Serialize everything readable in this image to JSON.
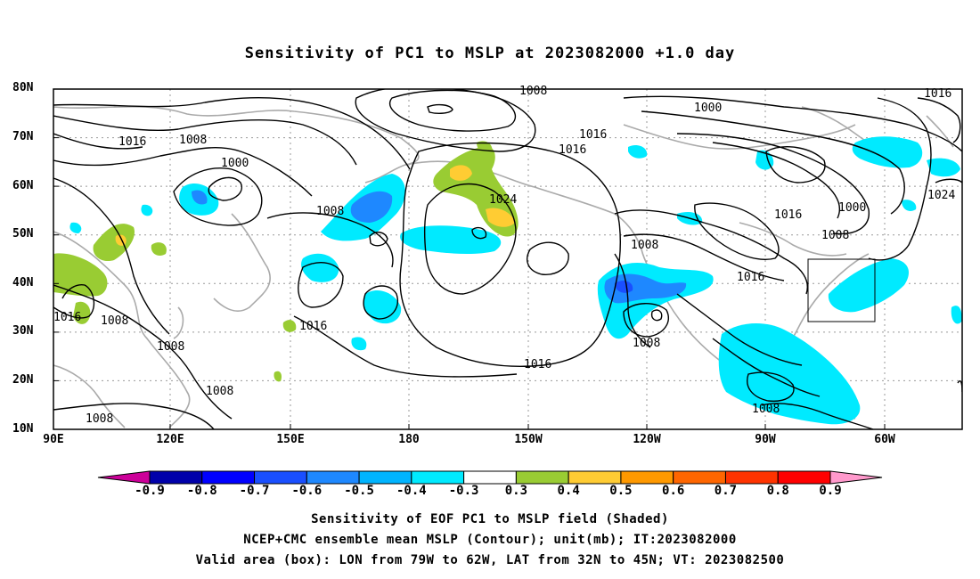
{
  "title": "Sensitivity of PC1 to MSLP at 2023082000 +1.0 day",
  "lat_labels": [
    "80N",
    "70N",
    "60N",
    "50N",
    "40N",
    "30N",
    "20N",
    "10N"
  ],
  "lon_labels": [
    "90E",
    "120E",
    "150E",
    "180",
    "150W",
    "120W",
    "90W",
    "60W"
  ],
  "contour_labels": [
    "1008",
    "1016",
    "1016",
    "1008",
    "1000",
    "1008",
    "1024",
    "1008",
    "1016",
    "1016",
    "1008",
    "1016",
    "1016",
    "1008",
    "1016",
    "1008",
    "1000",
    "1016",
    "1008",
    "1024",
    "1016",
    "1000",
    "1008",
    "1008",
    "1008",
    "1008",
    "1016"
  ],
  "colorbar": {
    "colors": [
      "#cc0099",
      "#0000aa",
      "#0000ff",
      "#1a4fff",
      "#1e88ff",
      "#00b4ff",
      "#00eaff",
      "#ffffff",
      "#99cc33",
      "#ffcc33",
      "#ff9900",
      "#ff6600",
      "#ff3300",
      "#ff0000",
      "#ff99cc"
    ],
    "labels": [
      "-0.9",
      "-0.8",
      "-0.7",
      "-0.6",
      "-0.5",
      "-0.4",
      "-0.3",
      "0.3",
      "0.4",
      "0.5",
      "0.6",
      "0.7",
      "0.8",
      "0.9"
    ]
  },
  "captions": [
    "Sensitivity of EOF PC1 to MSLP field (Shaded)",
    "NCEP+CMC ensemble mean MSLP (Contour); unit(mb); IT:2023082000",
    "Valid area (box): LON from 79W to 62W, LAT from 32N to 45N; VT: 2023082500"
  ]
}
